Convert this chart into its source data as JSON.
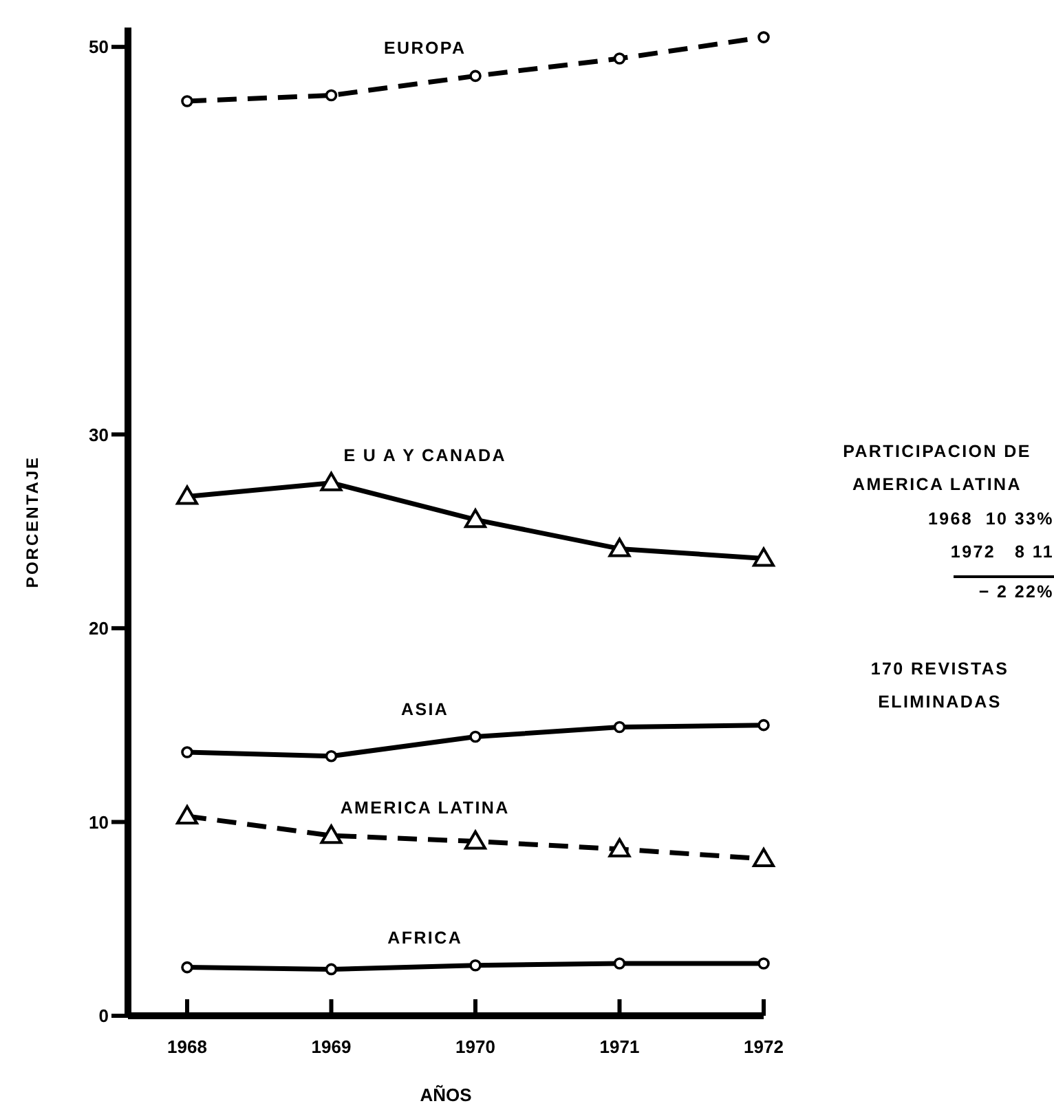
{
  "chart_data": {
    "type": "line",
    "ylabel": "PORCENTAJE",
    "xlabel": "AÑOS",
    "categories": [
      "1968",
      "1969",
      "1970",
      "1971",
      "1972"
    ],
    "ylim": [
      0,
      51
    ],
    "yticks": [
      0,
      10,
      20,
      30,
      50
    ],
    "series": [
      {
        "name": "EUROPA",
        "color": "#000000",
        "values": [
          47.2,
          47.5,
          48.5,
          49.4,
          50.5
        ],
        "marker": "circle",
        "line_style": "dashed"
      },
      {
        "name": "E U A  Y CANADA",
        "color": "#000000",
        "values": [
          26.8,
          27.5,
          25.6,
          24.1,
          23.6
        ],
        "marker": "triangle",
        "line_style": "solid"
      },
      {
        "name": "ASIA",
        "color": "#000000",
        "values": [
          13.6,
          13.4,
          14.4,
          14.9,
          15.0
        ],
        "marker": "circle",
        "line_style": "solid"
      },
      {
        "name": "AMERICA LATINA",
        "color": "#000000",
        "values": [
          10.3,
          9.3,
          9.0,
          8.6,
          8.1
        ],
        "marker": "triangle",
        "line_style": "dashed"
      },
      {
        "name": "AFRICA",
        "color": "#000000",
        "values": [
          2.5,
          2.4,
          2.6,
          2.7,
          2.7
        ],
        "marker": "circle",
        "line_style": "solid"
      }
    ],
    "annotations": [
      "PARTICIPACION DE AMERICA LATINA",
      "1968  10 33%",
      "1972   8 11",
      "− 2 22%",
      "170 REVISTAS ELIMINADAS"
    ]
  }
}
